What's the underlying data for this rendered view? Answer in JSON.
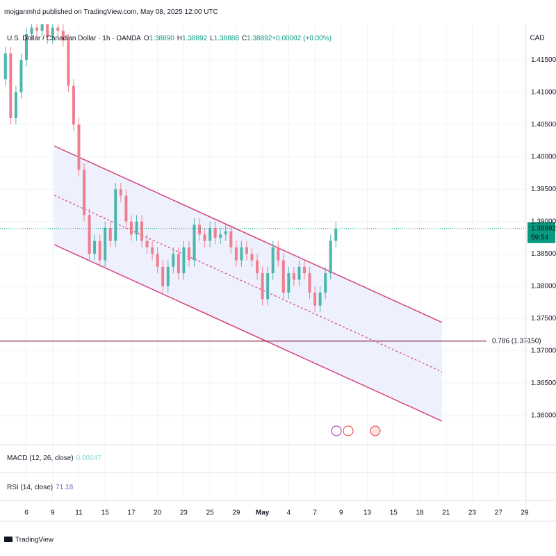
{
  "header": {
    "publisher": "mojganmhd published on TradingView.com, May 08, 2025 12:00 UTC"
  },
  "chart_data": {
    "type": "candlestick",
    "symbol": "U.S. Dollar / Canadian Dollar · 1h · OANDA",
    "ohlc_legend": [
      {
        "k": "O",
        "v": "1.38890"
      },
      {
        "k": "H",
        "v": "1.38892"
      },
      {
        "k": "L",
        "v": "1.38888"
      },
      {
        "k": "C",
        "v": "1.38892"
      },
      {
        "k": "",
        "v": "+0.00002 (+0.00%)"
      }
    ],
    "y_unit": "CAD",
    "categories": [
      null,
      null,
      null,
      null,
      "6",
      null,
      null,
      null,
      null,
      "9",
      null,
      null,
      null,
      null,
      "11",
      null,
      null,
      null,
      null,
      "15",
      null,
      null,
      null,
      null,
      "17",
      null,
      null,
      null,
      null,
      "20",
      null,
      null,
      null,
      null,
      "23",
      null,
      null,
      null,
      null,
      "25",
      null,
      null,
      null,
      null,
      "29",
      null,
      null,
      null,
      null,
      "May",
      null,
      null,
      null,
      null,
      "4",
      null,
      null,
      null,
      null,
      "7",
      null,
      null,
      null,
      null,
      "9",
      null,
      null,
      null,
      null,
      "13",
      null,
      null,
      null,
      null,
      "15",
      null,
      null,
      null,
      null,
      "18",
      null,
      null,
      null,
      null,
      "21",
      null,
      null,
      null,
      null,
      "23",
      null,
      null,
      null,
      null,
      "27",
      null,
      null,
      null,
      null,
      "29"
    ],
    "open": [
      1.412,
      1.416,
      1.406,
      1.41,
      1.415,
      1.419,
      1.42,
      1.4195,
      1.4205,
      1.4185,
      1.42,
      1.4195,
      1.418,
      1.411,
      1.405,
      1.398,
      1.391,
      1.385,
      1.387,
      1.384,
      1.389,
      1.387,
      1.395,
      1.394,
      1.39,
      1.388,
      1.39,
      1.387,
      1.386,
      1.385,
      1.383,
      1.38,
      1.383,
      1.385,
      1.382,
      1.386,
      1.384,
      1.3895,
      1.388,
      1.387,
      1.389,
      1.3875,
      1.388,
      1.3885,
      1.386,
      1.384,
      1.386,
      1.385,
      1.384,
      1.382,
      1.378,
      1.382,
      1.386,
      1.384,
      1.379,
      1.382,
      1.381,
      1.383,
      1.382,
      1.379,
      1.377,
      1.379,
      1.382,
      1.387,
      null,
      null,
      null,
      null,
      null,
      null,
      null,
      null,
      null,
      null,
      null,
      null,
      null,
      null,
      null,
      null,
      null,
      null,
      null,
      null,
      null,
      null,
      null,
      null,
      null,
      null,
      null,
      null,
      null,
      null,
      null,
      null,
      null,
      null,
      null,
      null
    ],
    "high": [
      1.417,
      1.417,
      1.411,
      1.416,
      1.42,
      1.421,
      1.421,
      1.4215,
      1.4215,
      1.421,
      1.421,
      1.4205,
      1.419,
      1.412,
      1.406,
      1.399,
      1.392,
      1.388,
      1.388,
      1.39,
      1.39,
      1.396,
      1.396,
      1.395,
      1.391,
      1.391,
      1.391,
      1.388,
      1.387,
      1.386,
      1.384,
      1.384,
      1.386,
      1.386,
      1.387,
      1.387,
      1.3905,
      1.3905,
      1.389,
      1.39,
      1.39,
      1.389,
      1.3895,
      1.3895,
      1.387,
      1.387,
      1.387,
      1.386,
      1.385,
      1.383,
      1.383,
      1.387,
      1.387,
      1.385,
      1.383,
      1.383,
      1.384,
      1.384,
      1.383,
      1.38,
      1.38,
      1.383,
      1.388,
      1.39,
      null,
      null,
      null,
      null,
      null,
      null,
      null,
      null,
      null,
      null,
      null,
      null,
      null,
      null,
      null,
      null,
      null,
      null,
      null,
      null,
      null,
      null,
      null,
      null,
      null,
      null,
      null,
      null,
      null,
      null,
      null,
      null,
      null,
      null,
      null,
      null
    ],
    "low": [
      1.411,
      1.405,
      1.405,
      1.409,
      1.414,
      1.418,
      1.4185,
      1.4185,
      1.4175,
      1.4175,
      1.4185,
      1.417,
      1.41,
      1.404,
      1.397,
      1.39,
      1.384,
      1.384,
      1.383,
      1.383,
      1.386,
      1.386,
      1.393,
      1.389,
      1.387,
      1.387,
      1.386,
      1.385,
      1.384,
      1.382,
      1.379,
      1.379,
      1.382,
      1.381,
      1.381,
      1.383,
      1.383,
      1.387,
      1.386,
      1.386,
      1.3865,
      1.3865,
      1.387,
      1.385,
      1.383,
      1.383,
      1.384,
      1.383,
      1.381,
      1.377,
      1.377,
      1.381,
      1.383,
      1.378,
      1.378,
      1.38,
      1.38,
      1.381,
      1.378,
      1.376,
      1.376,
      1.378,
      1.381,
      1.386,
      null,
      null,
      null,
      null,
      null,
      null,
      null,
      null,
      null,
      null,
      null,
      null,
      null,
      null,
      null,
      null,
      null,
      null,
      null,
      null,
      null,
      null,
      null,
      null,
      null,
      null,
      null,
      null,
      null,
      null,
      null,
      null,
      null,
      null,
      null,
      null
    ],
    "close": [
      1.416,
      1.406,
      1.41,
      1.415,
      1.419,
      1.42,
      1.4195,
      1.4205,
      1.4185,
      1.42,
      1.4195,
      1.418,
      1.411,
      1.405,
      1.398,
      1.391,
      1.385,
      1.387,
      1.384,
      1.389,
      1.387,
      1.395,
      1.394,
      1.39,
      1.388,
      1.39,
      1.387,
      1.386,
      1.385,
      1.383,
      1.38,
      1.383,
      1.385,
      1.382,
      1.386,
      1.384,
      1.3895,
      1.388,
      1.387,
      1.389,
      1.3875,
      1.388,
      1.3885,
      1.386,
      1.384,
      1.386,
      1.385,
      1.384,
      1.382,
      1.378,
      1.382,
      1.386,
      1.384,
      1.379,
      1.382,
      1.381,
      1.383,
      1.382,
      1.379,
      1.377,
      1.379,
      1.382,
      1.387,
      1.3889,
      null,
      null,
      null,
      null,
      null,
      null,
      null,
      null,
      null,
      null,
      null,
      null,
      null,
      null,
      null,
      null,
      null,
      null,
      null,
      null,
      null,
      null,
      null,
      null,
      null,
      null,
      null,
      null,
      null,
      null,
      null,
      null,
      null,
      null,
      null,
      null
    ],
    "up_color": "#4db6ac",
    "down_color": "#ef7f8f",
    "ylim": [
      1.356,
      1.4205
    ],
    "yticks": [
      {
        "value": 1.36,
        "label": "1.36000"
      },
      {
        "value": 1.365,
        "label": "1.36500"
      },
      {
        "value": 1.37,
        "label": "1.37000"
      },
      {
        "value": 1.375,
        "label": "1.37500"
      },
      {
        "value": 1.38,
        "label": "1.38000"
      },
      {
        "value": 1.385,
        "label": "1.38500"
      },
      {
        "value": 1.39,
        "label": "1.39000"
      },
      {
        "value": 1.395,
        "label": "1.39500"
      },
      {
        "value": 1.4,
        "label": "1.40000"
      },
      {
        "value": 1.405,
        "label": "1.40500"
      },
      {
        "value": 1.41,
        "label": "1.41000"
      },
      {
        "value": 1.415,
        "label": "1.41500"
      }
    ],
    "grid": true,
    "last_price": {
      "value": 1.38892,
      "label": "1.38892",
      "countdown": "59:54"
    },
    "fib_level": {
      "value": 1.3715,
      "label": "0.786 (1.37150)"
    },
    "macd": {
      "label": "MACD (12, 26, close)",
      "value": 0.00047
    },
    "rsi": {
      "label": "RSI (14, close)",
      "value": 71.18
    }
  },
  "footer": {
    "brand": "TradingView"
  }
}
